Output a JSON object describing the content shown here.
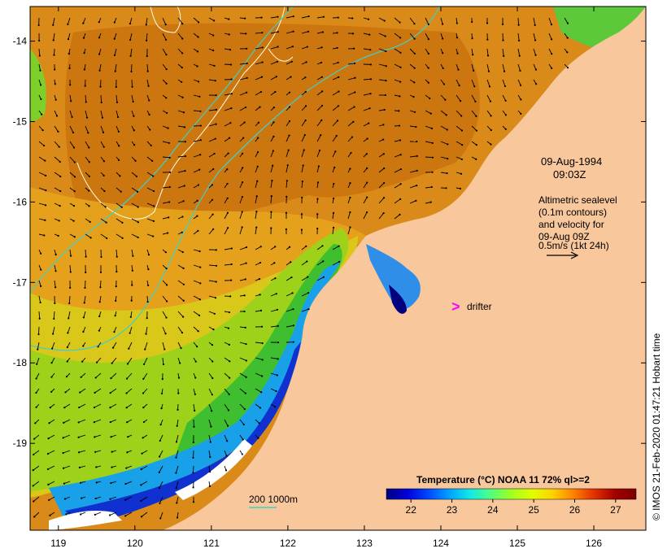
{
  "map": {
    "lon_ticks": [
      "119",
      "120",
      "121",
      "122",
      "123",
      "124",
      "125",
      "126"
    ],
    "lat_ticks": [
      "-14",
      "-15",
      "-16",
      "-17",
      "-18",
      "-19"
    ],
    "lon_range": [
      118.63,
      126.68
    ],
    "lat_range": [
      -20.08,
      -13.57
    ],
    "date": "09-Aug-1994",
    "time": "09:03Z",
    "altimetry_lines": [
      "Altimetric sealevel",
      "(0.1m contours)",
      "and velocity for",
      "09-Aug 09Z",
      "0.5m/s (1kt 24h)"
    ],
    "drifter_marker": ">",
    "drifter_label": "drifter",
    "bathymetry_label": "200  1000m",
    "credit": "© IMOS 21-Feb-2020 01:47:21 Hobart time",
    "colorbar": {
      "title": "Temperature (°C) NOAA 11 72% ql>=2",
      "ticks": [
        "22",
        "23",
        "24",
        "25",
        "26",
        "27"
      ],
      "range": [
        21.4,
        27.5
      ],
      "colors": [
        "#00007f",
        "#0000d8",
        "#0046ff",
        "#00a0ff",
        "#10e8e8",
        "#50ff80",
        "#a0ff20",
        "#e0ff00",
        "#ffd000",
        "#ff8000",
        "#e03000",
        "#a00000",
        "#7f0000"
      ]
    },
    "colors": {
      "land": "#f9c79c",
      "contour_200": "#3fd0c8",
      "contour_sealevel": "#fffbe0",
      "arrow": "#000000",
      "drifter": "#ff00ff"
    }
  }
}
